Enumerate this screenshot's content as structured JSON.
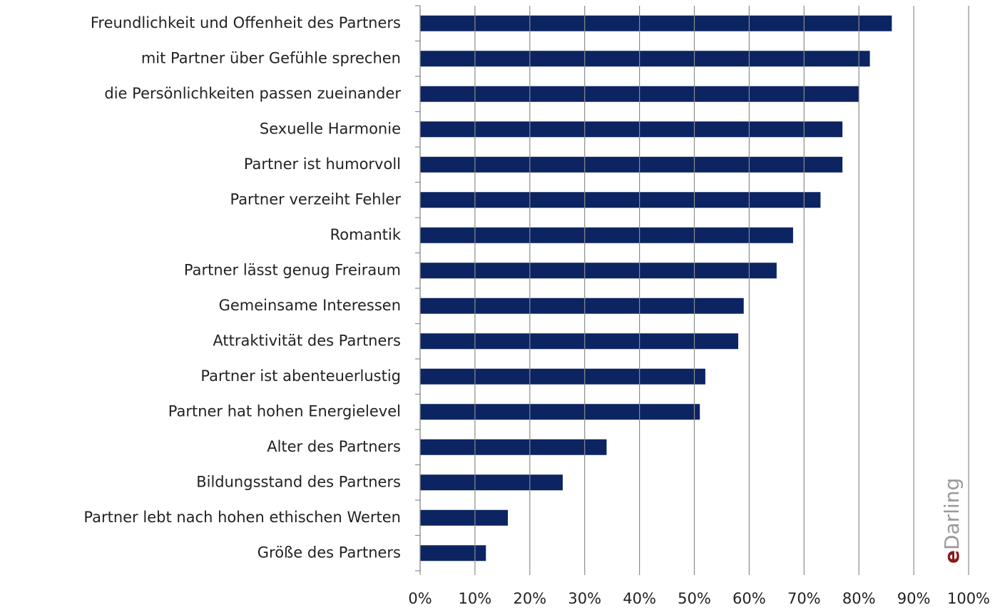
{
  "chart_data": {
    "type": "bar",
    "orientation": "horizontal",
    "categories": [
      "Freundlichkeit und Offenheit des Partners",
      "mit Partner über Gefühle sprechen",
      "die Persönlichkeiten passen zueinander",
      "Sexuelle Harmonie ",
      "Partner ist humorvoll",
      "Partner verzeiht Fehler",
      "Romantik",
      "Partner lässt genug Freiraum",
      "Gemeinsame Interessen",
      "Attraktivität des Partners",
      "Partner ist abenteuerlustig",
      "Partner hat hohen Energielevel",
      "Alter des Partners",
      "Bildungsstand des Partners",
      "Partner lebt nach hohen ethischen Werten",
      "Größe des Partners"
    ],
    "values": [
      86,
      82,
      80,
      77,
      77,
      73,
      68,
      65,
      59,
      58,
      52,
      51,
      34,
      26,
      16,
      12
    ],
    "color": "#0c2461",
    "xlim": [
      0,
      100
    ],
    "xticks": [
      {
        "value": 0,
        "label": "0%"
      },
      {
        "value": 10,
        "label": "10%"
      },
      {
        "value": 20,
        "label": "20%"
      },
      {
        "value": 30,
        "label": "30%"
      },
      {
        "value": 40,
        "label": "40%"
      },
      {
        "value": 50,
        "label": "50%"
      },
      {
        "value": 60,
        "label": "60%"
      },
      {
        "value": 70,
        "label": "70%"
      },
      {
        "value": 80,
        "label": "80%"
      },
      {
        "value": 90,
        "label": "90%"
      },
      {
        "value": 100,
        "label": "100%"
      }
    ],
    "grid": true,
    "logo": [
      "e",
      "Darling"
    ]
  }
}
